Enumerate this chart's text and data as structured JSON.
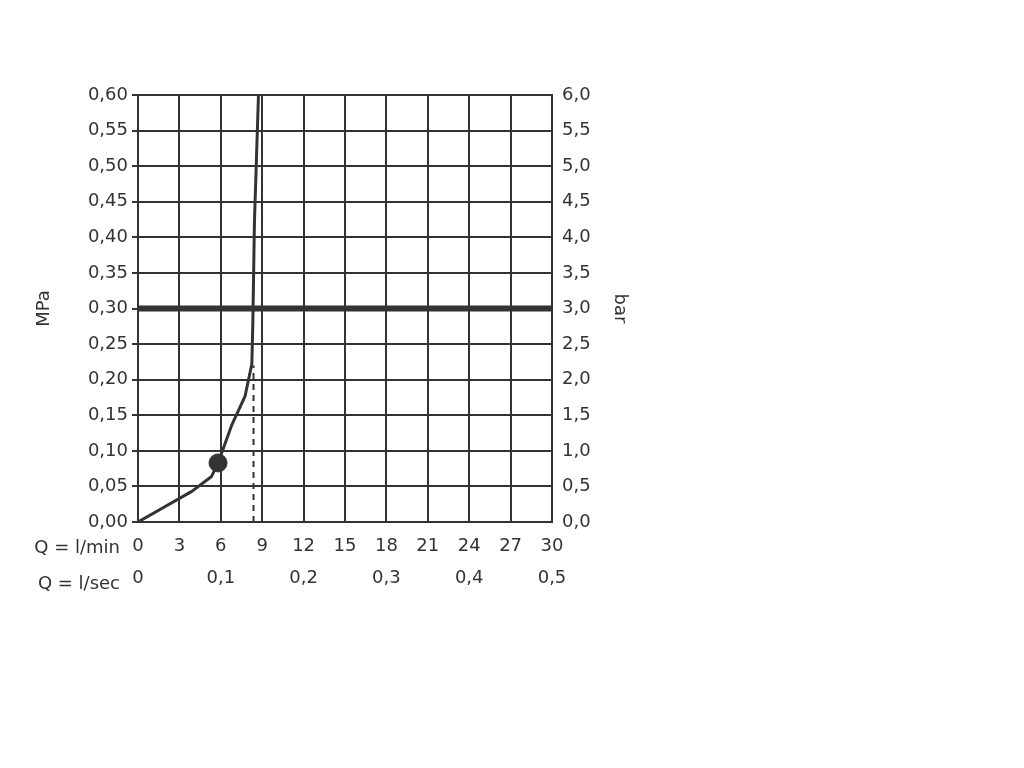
{
  "chart_data": {
    "type": "line",
    "xlabel": "Q = l/min",
    "ylabel": "MPa",
    "y2label": "bar",
    "x2label": "Q = l/sec",
    "xlim": [
      0,
      30
    ],
    "xticks": [
      0,
      3,
      6,
      9,
      12,
      15,
      18,
      21,
      24,
      27,
      30
    ],
    "ylim": [
      0,
      0.6
    ],
    "yticks": [
      {
        "value": 0,
        "label": "0,00"
      },
      {
        "value": 0.05,
        "label": "0,05"
      },
      {
        "value": 0.1,
        "label": "0,10"
      },
      {
        "value": 0.15,
        "label": "0,15"
      },
      {
        "value": 0.2,
        "label": "0,20"
      },
      {
        "value": 0.25,
        "label": "0,25"
      },
      {
        "value": 0.3,
        "label": "0,30"
      },
      {
        "value": 0.35,
        "label": "0,35"
      },
      {
        "value": 0.4,
        "label": "0,40"
      },
      {
        "value": 0.45,
        "label": "0,45"
      },
      {
        "value": 0.5,
        "label": "0,50"
      },
      {
        "value": 0.55,
        "label": "0,55"
      },
      {
        "value": 0.6,
        "label": "0,60"
      }
    ],
    "y2lim": [
      0,
      6
    ],
    "y2ticks": [
      {
        "value": 0,
        "label": "0,0"
      },
      {
        "value": 0.5,
        "label": "0,5"
      },
      {
        "value": 1,
        "label": "1,0"
      },
      {
        "value": 1.5,
        "label": "1,5"
      },
      {
        "value": 2,
        "label": "2,0"
      },
      {
        "value": 2.5,
        "label": "2,5"
      },
      {
        "value": 3,
        "label": "3,0"
      },
      {
        "value": 3.5,
        "label": "3,5"
      },
      {
        "value": 4,
        "label": "4,0"
      },
      {
        "value": 4.5,
        "label": "4,5"
      },
      {
        "value": 5,
        "label": "5,0"
      },
      {
        "value": 5.5,
        "label": "5,5"
      },
      {
        "value": 6,
        "label": "6,0"
      }
    ],
    "x2lim": [
      0,
      0.5
    ],
    "x2ticks": [
      0,
      {
        "value": 0.1,
        "label": "0,1"
      },
      {
        "value": 0.2,
        "label": "0,2"
      },
      {
        "value": 0.3,
        "label": "0,3"
      },
      {
        "value": 0.4,
        "label": "0,4"
      },
      {
        "value": 0.5,
        "label": "0,5"
      }
    ],
    "grid": true,
    "legend": false,
    "series": [
      {
        "color": "#333333",
        "marker": "none",
        "line_style": "solid",
        "x": [
          0,
          3.9,
          5.33,
          5.8,
          6.79,
          7.76,
          8.25,
          8.32,
          8.44,
          8.73
        ],
        "values": [
          0,
          0.043,
          0.064,
          0.083,
          0.136,
          0.177,
          0.222,
          0.279,
          0.423,
          0.6
        ]
      },
      {
        "type": "scatter",
        "color": "#333333",
        "marker": "circle",
        "x": [
          5.8
        ],
        "values": [
          0.083
        ]
      },
      {
        "type": "line",
        "color": "#333333",
        "marker": "none",
        "line_style": "dashed",
        "x": [
          8.37,
          8.37
        ],
        "values": [
          0,
          0.22
        ]
      }
    ],
    "ref_lines": [
      {
        "axis": "y",
        "value": 0.3,
        "color": "#333333"
      }
    ]
  }
}
